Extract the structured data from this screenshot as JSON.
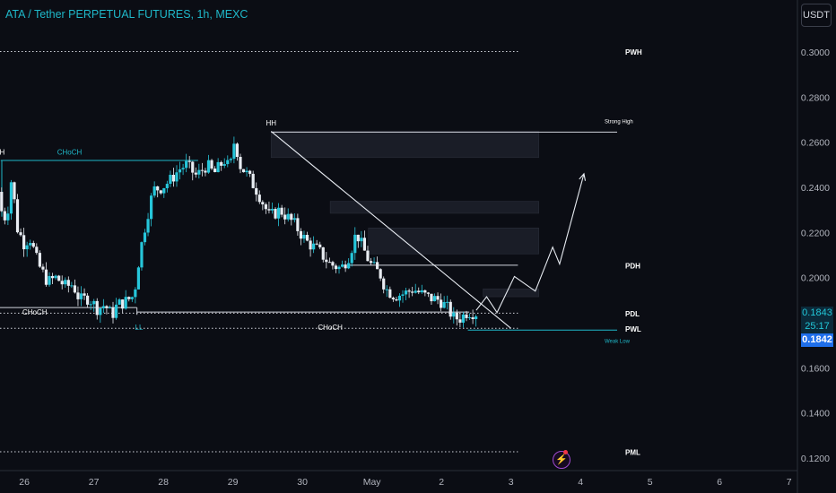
{
  "header": {
    "title": "ATA / Tether PERPETUAL FUTURES, 1h, MEXC",
    "currency_button": "USDT"
  },
  "price_tags": {
    "last": "0.1843",
    "timer": "25:17",
    "bid": "0.1842"
  },
  "alert": {
    "icon": "lightning-alert-icon"
  },
  "colors": {
    "background": "#0b0d14",
    "up": "#26c6da",
    "down": "#e8ecf2",
    "level_line": "#d1d4dc",
    "choch": "#1fb8c9",
    "zone": "#1a1d27"
  },
  "chart_data": {
    "type": "candlestick",
    "title": "ATA / Tether PERPETUAL FUTURES, 1h, MEXC",
    "y_axis": {
      "ticks": [
        "0.3000",
        "0.2800",
        "0.2600",
        "0.2400",
        "0.2200",
        "0.2000",
        "0.1800",
        "0.1600",
        "0.1400",
        "0.1200"
      ],
      "ylim": [
        0.1168,
        0.3214
      ]
    },
    "x_axis": {
      "ticks": [
        "26",
        "27",
        "28",
        "29",
        "30",
        "May",
        "2",
        "3",
        "4",
        "5",
        "6",
        "7"
      ],
      "range_days": [
        25.55,
        33.3
      ]
    },
    "grid": false,
    "price_path": [
      [
        25.55,
        0.238
      ],
      [
        25.62,
        0.225
      ],
      [
        25.7,
        0.232
      ],
      [
        25.74,
        0.245
      ],
      [
        25.82,
        0.222
      ],
      [
        25.92,
        0.215
      ],
      [
        26.0,
        0.218
      ],
      [
        26.12,
        0.206
      ],
      [
        26.26,
        0.198
      ],
      [
        26.38,
        0.2
      ],
      [
        26.52,
        0.196
      ],
      [
        26.62,
        0.197
      ],
      [
        26.72,
        0.19
      ],
      [
        26.85,
        0.191
      ],
      [
        26.98,
        0.186
      ],
      [
        27.08,
        0.188
      ],
      [
        27.18,
        0.183
      ],
      [
        27.26,
        0.188
      ],
      [
        27.36,
        0.189
      ],
      [
        27.5,
        0.192
      ],
      [
        27.58,
        0.21
      ],
      [
        27.68,
        0.226
      ],
      [
        27.78,
        0.239
      ],
      [
        27.9,
        0.24
      ],
      [
        28.02,
        0.243
      ],
      [
        28.15,
        0.248
      ],
      [
        28.25,
        0.25
      ],
      [
        28.4,
        0.245
      ],
      [
        28.55,
        0.25
      ],
      [
        28.65,
        0.246
      ],
      [
        28.8,
        0.252
      ],
      [
        28.88,
        0.248
      ],
      [
        28.95,
        0.262
      ],
      [
        29.02,
        0.25
      ],
      [
        29.12,
        0.246
      ],
      [
        29.28,
        0.238
      ],
      [
        29.45,
        0.227
      ],
      [
        29.6,
        0.23
      ],
      [
        29.8,
        0.224
      ],
      [
        29.98,
        0.216
      ],
      [
        30.15,
        0.212
      ],
      [
        30.32,
        0.206
      ],
      [
        30.48,
        0.204
      ],
      [
        30.6,
        0.21
      ],
      [
        30.7,
        0.22
      ],
      [
        30.78,
        0.214
      ],
      [
        30.9,
        0.206
      ],
      [
        31.05,
        0.201
      ],
      [
        31.12,
        0.195
      ],
      [
        31.25,
        0.192
      ],
      [
        31.4,
        0.193
      ],
      [
        31.52,
        0.195
      ],
      [
        31.62,
        0.193
      ],
      [
        31.75,
        0.191
      ],
      [
        31.9,
        0.19
      ],
      [
        32.02,
        0.186
      ],
      [
        32.1,
        0.182
      ],
      [
        32.2,
        0.182
      ],
      [
        32.3,
        0.185
      ],
      [
        32.42,
        0.1843
      ]
    ],
    "candle_count": 150,
    "levels": [
      {
        "label": "PWH",
        "price": 0.3002,
        "x_from": 25.55,
        "x_to": 33.0,
        "style": "dotted"
      },
      {
        "label": "PDH",
        "price": 0.2055,
        "x_from": 30.55,
        "x_to": 33.0,
        "style": "solid"
      },
      {
        "label": "PDL",
        "price": 0.1842,
        "x_from": 25.55,
        "x_to": 33.0,
        "style": "dotted"
      },
      {
        "label": "PWL",
        "price": 0.1775,
        "x_from": 25.55,
        "x_to": 33.0,
        "style": "dotted"
      },
      {
        "label": "PML",
        "price": 0.1228,
        "x_from": 25.55,
        "x_to": 33.0,
        "style": "dotted"
      },
      {
        "label": "Strong High",
        "price": 0.2645,
        "x_from": 29.45,
        "x_to": 33.0,
        "style": "solid"
      },
      {
        "label": "Weak Low",
        "price": 0.1767,
        "x_from": 32.28,
        "x_to": 33.0,
        "style": "solid"
      }
    ],
    "structure_labels": [
      {
        "text": "HH",
        "day": 29.45,
        "price": 0.2675
      },
      {
        "text": "H",
        "day": 25.58,
        "price": 0.2545
      },
      {
        "text": "CHoCH",
        "day": 26.55,
        "price": 0.2545,
        "color": "choch"
      },
      {
        "text": "CHoCH",
        "day": 26.05,
        "price": 0.1835
      },
      {
        "text": "LL",
        "day": 27.55,
        "price": 0.1769,
        "color": "choch"
      },
      {
        "text": "CHoCH",
        "day": 30.3,
        "price": 0.1769
      }
    ],
    "choch_lines": [
      {
        "price": 0.2519,
        "x_from": 25.56,
        "x_to": 28.4,
        "color": "choch"
      },
      {
        "price": 0.1867,
        "x_from": 25.55,
        "x_to": 27.52,
        "color": "level_line"
      },
      {
        "price": 0.1847,
        "x_from": 27.52,
        "x_to": 32.3,
        "color": "level_line"
      }
    ],
    "zones": [
      {
        "top": 0.2648,
        "bottom": 0.2532,
        "x_from": 29.45,
        "x_to": 33.3
      },
      {
        "top": 0.2338,
        "bottom": 0.2285,
        "x_from": 30.3,
        "x_to": 33.3
      },
      {
        "top": 0.222,
        "bottom": 0.2105,
        "x_from": 30.85,
        "x_to": 33.3
      },
      {
        "top": 0.195,
        "bottom": 0.1915,
        "x_from": 32.5,
        "x_to": 33.3
      }
    ],
    "trendline": [
      [
        29.45,
        0.2648
      ],
      [
        32.9,
        0.1775
      ]
    ],
    "projection": [
      [
        32.4,
        0.1855
      ],
      [
        32.55,
        0.1915
      ],
      [
        32.7,
        0.1845
      ],
      [
        32.95,
        0.2005
      ],
      [
        33.25,
        0.194
      ],
      [
        33.5,
        0.2135
      ],
      [
        33.6,
        0.206
      ],
      [
        33.95,
        0.246
      ]
    ]
  }
}
